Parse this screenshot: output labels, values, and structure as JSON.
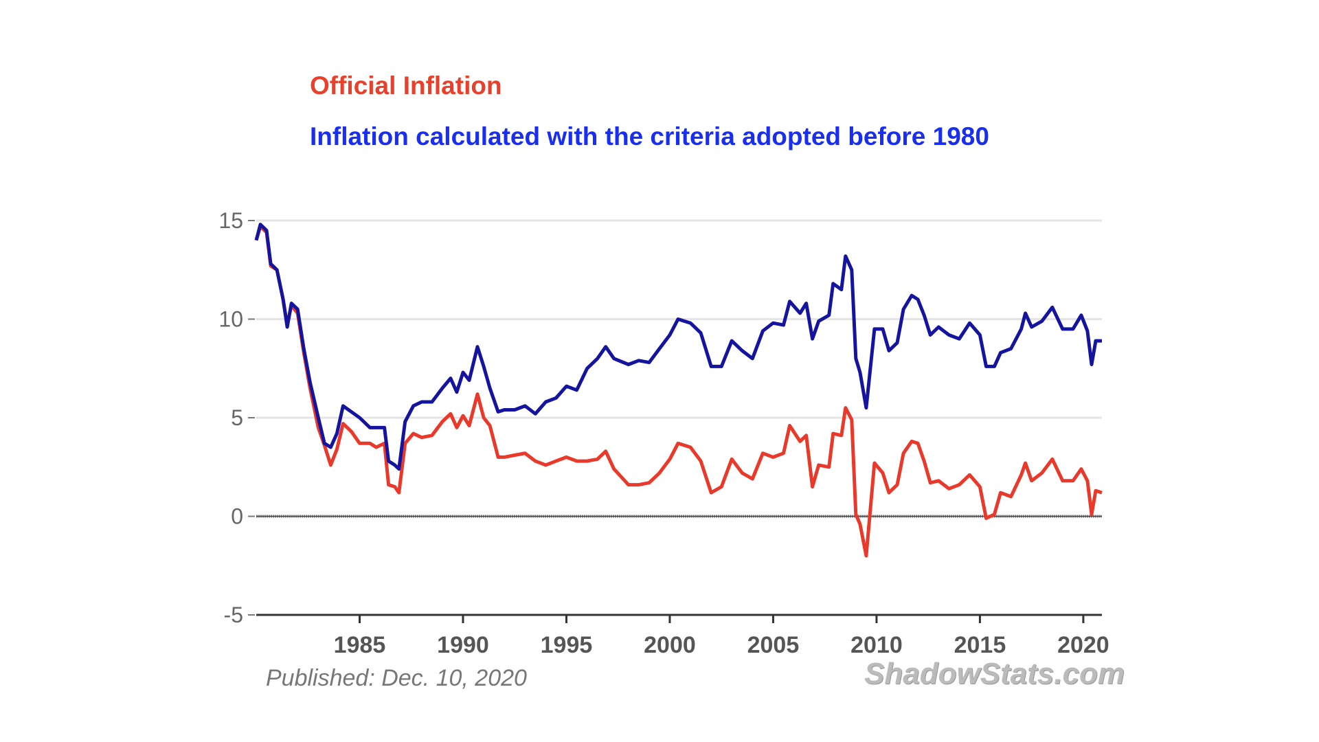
{
  "chart_data": {
    "type": "line",
    "title": "",
    "xlabel": "",
    "ylabel": "",
    "xlim": [
      1980,
      2020.9
    ],
    "ylim": [
      -5,
      15
    ],
    "yticks": [
      "15",
      "10",
      "5",
      "0",
      "-5"
    ],
    "ytick_values": [
      15,
      10,
      5,
      0,
      -5
    ],
    "xticks": [
      "1985",
      "1990",
      "1995",
      "2000",
      "2005",
      "2010",
      "2015",
      "2020"
    ],
    "xtick_values": [
      1985,
      1990,
      1995,
      2000,
      2005,
      2010,
      2015,
      2020
    ],
    "grid": true,
    "legend_placement": "top-left, above plot",
    "x": [
      1980.0,
      1980.2,
      1980.5,
      1980.7,
      1981.0,
      1981.3,
      1981.5,
      1981.7,
      1982.0,
      1982.3,
      1982.6,
      1983.0,
      1983.3,
      1983.6,
      1983.9,
      1984.2,
      1984.6,
      1985.0,
      1985.5,
      1985.8,
      1986.2,
      1986.4,
      1986.7,
      1986.9,
      1987.2,
      1987.6,
      1988.0,
      1988.5,
      1989.0,
      1989.4,
      1989.7,
      1990.0,
      1990.3,
      1990.7,
      1991.0,
      1991.3,
      1991.7,
      1992.0,
      1992.5,
      1993.0,
      1993.5,
      1994.0,
      1994.5,
      1995.0,
      1995.5,
      1996.0,
      1996.5,
      1996.9,
      1997.3,
      1998.0,
      1998.5,
      1999.0,
      1999.5,
      2000.0,
      2000.4,
      2001.0,
      2001.5,
      2002.0,
      2002.5,
      2003.0,
      2003.5,
      2004.0,
      2004.5,
      2005.0,
      2005.5,
      2005.8,
      2006.3,
      2006.6,
      2006.9,
      2007.2,
      2007.7,
      2007.9,
      2008.3,
      2008.5,
      2008.8,
      2009.0,
      2009.2,
      2009.5,
      2009.9,
      2010.3,
      2010.6,
      2011.0,
      2011.3,
      2011.7,
      2012.0,
      2012.3,
      2012.6,
      2013.0,
      2013.5,
      2014.0,
      2014.5,
      2015.0,
      2015.3,
      2015.7,
      2016.0,
      2016.5,
      2017.0,
      2017.2,
      2017.5,
      2018.0,
      2018.5,
      2019.0,
      2019.5,
      2019.9,
      2020.2,
      2020.4,
      2020.6,
      2020.9
    ],
    "series": [
      {
        "name": "Official Inflation",
        "color": "#e8392a",
        "values": [
          14,
          14.7,
          14.4,
          12.7,
          12.5,
          11,
          9.7,
          10.7,
          10.3,
          8.3,
          6.5,
          4.5,
          3.6,
          2.6,
          3.4,
          4.7,
          4.3,
          3.7,
          3.7,
          3.5,
          3.7,
          1.6,
          1.5,
          1.2,
          3.7,
          4.2,
          4.0,
          4.1,
          4.8,
          5.2,
          4.5,
          5.1,
          4.6,
          6.2,
          5.0,
          4.6,
          3.0,
          3.0,
          3.1,
          3.2,
          2.8,
          2.6,
          2.8,
          3.0,
          2.8,
          2.8,
          2.9,
          3.3,
          2.4,
          1.6,
          1.6,
          1.7,
          2.2,
          2.9,
          3.7,
          3.5,
          2.8,
          1.2,
          1.5,
          2.9,
          2.2,
          1.9,
          3.2,
          3.0,
          3.2,
          4.6,
          3.8,
          4.1,
          1.5,
          2.6,
          2.5,
          4.2,
          4.1,
          5.5,
          4.9,
          0.1,
          -0.4,
          -2.0,
          2.7,
          2.2,
          1.2,
          1.6,
          3.2,
          3.8,
          3.7,
          2.8,
          1.7,
          1.8,
          1.4,
          1.6,
          2.1,
          1.5,
          -0.1,
          0.1,
          1.2,
          1.0,
          2.1,
          2.7,
          1.8,
          2.2,
          2.9,
          1.8,
          1.8,
          2.4,
          1.8,
          0.1,
          1.3,
          1.2
        ]
      },
      {
        "name": "Inflation calculated with the criteria adopted before 1980",
        "color": "#14149e",
        "values": [
          14,
          14.8,
          14.5,
          12.8,
          12.5,
          11,
          9.6,
          10.8,
          10.5,
          8.5,
          6.8,
          5,
          3.7,
          3.5,
          4.2,
          5.6,
          5.3,
          5.0,
          4.5,
          4.5,
          4.5,
          2.8,
          2.6,
          2.4,
          4.8,
          5.6,
          5.8,
          5.8,
          6.5,
          7.0,
          6.3,
          7.3,
          6.9,
          8.6,
          7.6,
          6.5,
          5.3,
          5.4,
          5.4,
          5.6,
          5.2,
          5.8,
          6.0,
          6.6,
          6.4,
          7.5,
          8.0,
          8.6,
          8.0,
          7.7,
          7.9,
          7.8,
          8.5,
          9.2,
          10.0,
          9.8,
          9.3,
          7.6,
          7.6,
          8.9,
          8.4,
          8.0,
          9.4,
          9.8,
          9.7,
          10.9,
          10.3,
          10.8,
          9.0,
          9.9,
          10.2,
          11.8,
          11.5,
          13.2,
          12.5,
          8.0,
          7.3,
          5.5,
          9.5,
          9.5,
          8.4,
          8.8,
          10.5,
          11.2,
          11.0,
          10.2,
          9.2,
          9.6,
          9.2,
          9.0,
          9.8,
          9.2,
          7.6,
          7.6,
          8.3,
          8.5,
          9.5,
          10.3,
          9.6,
          9.9,
          10.6,
          9.5,
          9.5,
          10.2,
          9.4,
          7.7,
          8.9,
          8.9
        ]
      }
    ]
  },
  "legend": {
    "official": "Official Inflation",
    "official_color": "#e8402a",
    "alternate": "Inflation calculated with the criteria adopted before 1980",
    "alternate_color": "#1a2ef0"
  },
  "footer": {
    "published": "Published: Dec. 10, 2020",
    "watermark": "ShadowStats.com"
  }
}
